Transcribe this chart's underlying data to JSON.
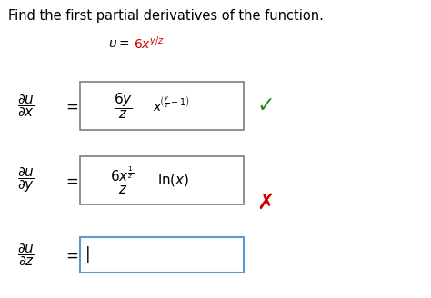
{
  "background_color": "#ffffff",
  "title_text": "Find the first partial derivatives of the function.",
  "title_fontsize": 10.5,
  "function_color": "#cc0000",
  "check_color": "#2e8b2e",
  "cross_color": "#cc0000",
  "box_border_color1": "#888888",
  "box_border_color2": "#888888",
  "box_border_color3": "#5b9bd5",
  "gray": "#555555"
}
